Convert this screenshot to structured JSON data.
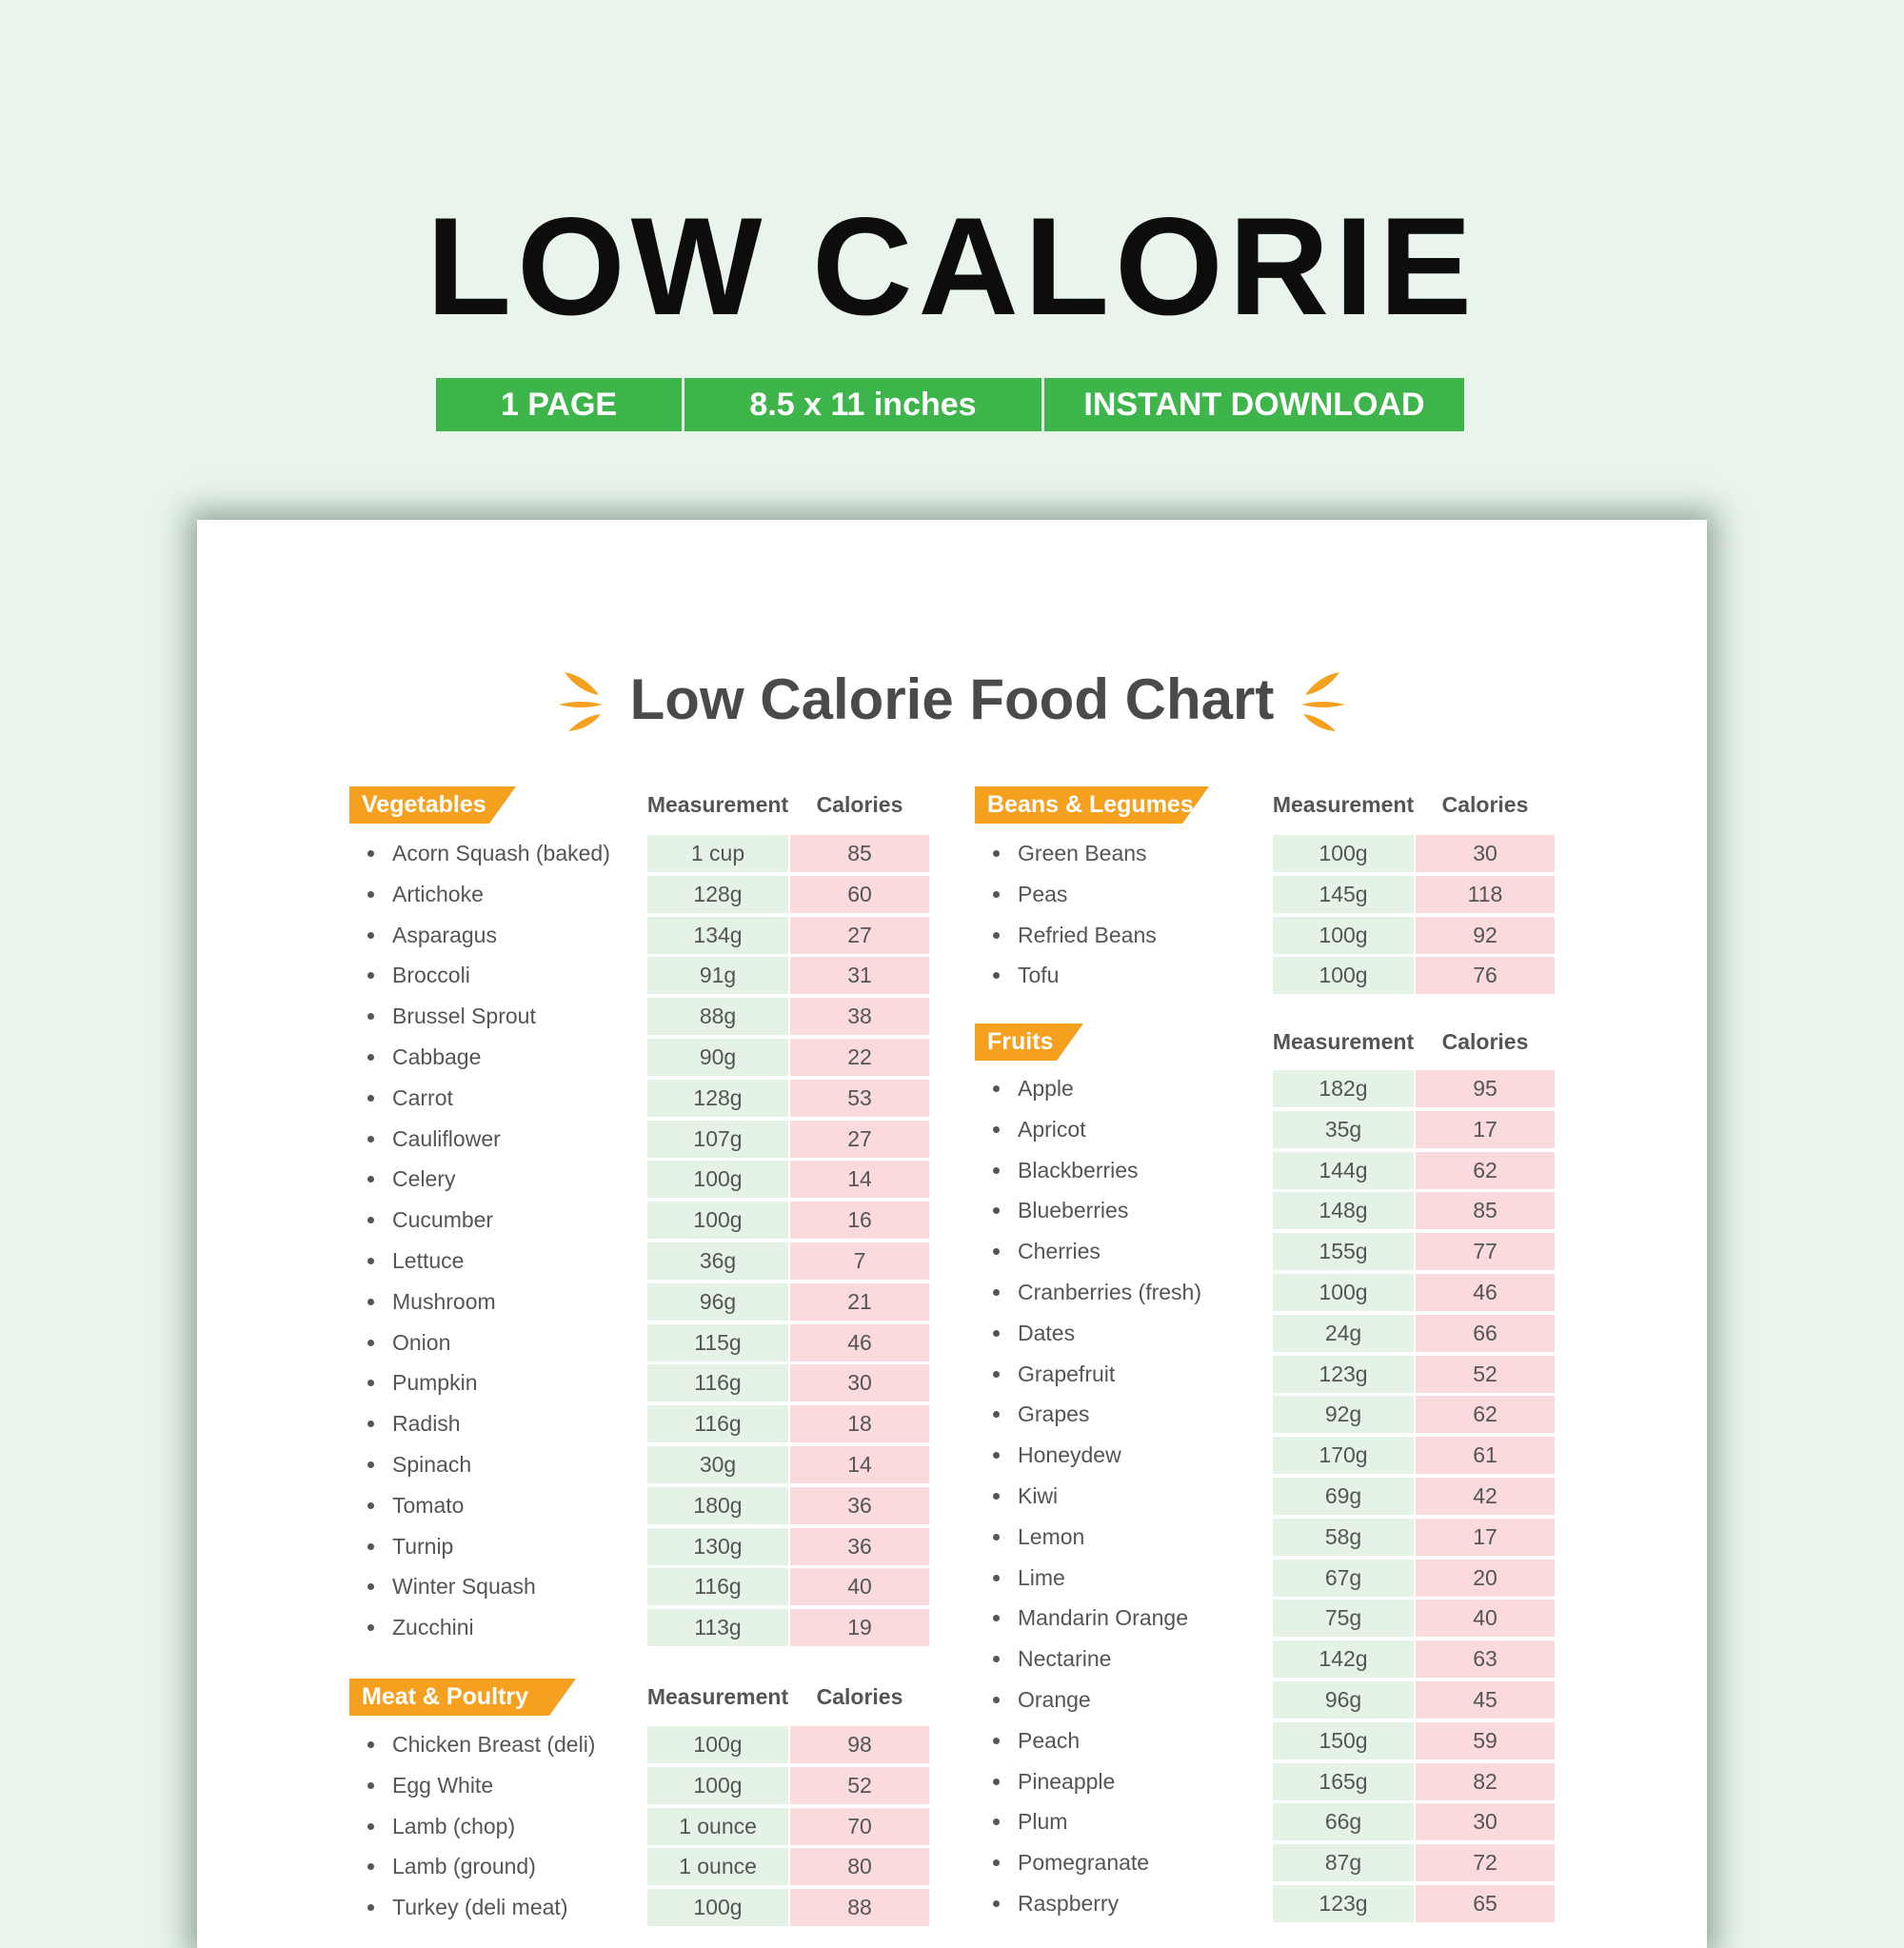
{
  "header": {
    "title": "LOW CALORIE",
    "badges": [
      "1 PAGE",
      "8.5 x 11 inches",
      "INSTANT DOWNLOAD"
    ]
  },
  "document": {
    "title": "Low Calorie Food Chart",
    "sections": [
      {
        "name": "Vegetables",
        "columns": [
          "Measurement",
          "Calories"
        ],
        "rows": [
          [
            "Acorn Squash (baked)",
            "1 cup",
            "85"
          ],
          [
            "Artichoke",
            "128g",
            "60"
          ],
          [
            "Asparagus",
            "134g",
            "27"
          ],
          [
            "Broccoli",
            "91g",
            "31"
          ],
          [
            "Brussel Sprout",
            "88g",
            "38"
          ],
          [
            "Cabbage",
            "90g",
            "22"
          ],
          [
            "Carrot",
            "128g",
            "53"
          ],
          [
            "Cauliflower",
            "107g",
            "27"
          ],
          [
            "Celery",
            "100g",
            "14"
          ],
          [
            "Cucumber",
            "100g",
            "16"
          ],
          [
            "Lettuce",
            "36g",
            "7"
          ],
          [
            "Mushroom",
            "96g",
            "21"
          ],
          [
            "Onion",
            "115g",
            "46"
          ],
          [
            "Pumpkin",
            "116g",
            "30"
          ],
          [
            "Radish",
            "116g",
            "18"
          ],
          [
            "Spinach",
            "30g",
            "14"
          ],
          [
            "Tomato",
            "180g",
            "36"
          ],
          [
            "Turnip",
            "130g",
            "36"
          ],
          [
            "Winter Squash",
            "116g",
            "40"
          ],
          [
            "Zucchini",
            "113g",
            "19"
          ]
        ]
      },
      {
        "name": "Meat & Poultry",
        "columns": [
          "Measurement",
          "Calories"
        ],
        "rows": [
          [
            "Chicken Breast (deli)",
            "100g",
            "98"
          ],
          [
            "Egg White",
            "100g",
            "52"
          ],
          [
            "Lamb (chop)",
            "1 ounce",
            "70"
          ],
          [
            "Lamb (ground)",
            "1 ounce",
            "80"
          ],
          [
            "Turkey (deli meat)",
            "100g",
            "88"
          ]
        ]
      },
      {
        "name": "Beans & Legumes",
        "columns": [
          "Measurement",
          "Calories"
        ],
        "rows": [
          [
            "Green Beans",
            "100g",
            "30"
          ],
          [
            "Peas",
            "145g",
            "118"
          ],
          [
            "Refried Beans",
            "100g",
            "92"
          ],
          [
            "Tofu",
            "100g",
            "76"
          ]
        ]
      },
      {
        "name": "Fruits",
        "columns": [
          "Measurement",
          "Calories"
        ],
        "rows": [
          [
            "Apple",
            "182g",
            "95"
          ],
          [
            "Apricot",
            "35g",
            "17"
          ],
          [
            "Blackberries",
            "144g",
            "62"
          ],
          [
            "Blueberries",
            "148g",
            "85"
          ],
          [
            "Cherries",
            "155g",
            "77"
          ],
          [
            "Cranberries (fresh)",
            "100g",
            "46"
          ],
          [
            "Dates",
            "24g",
            "66"
          ],
          [
            "Grapefruit",
            "123g",
            "52"
          ],
          [
            "Grapes",
            "92g",
            "62"
          ],
          [
            "Honeydew",
            "170g",
            "61"
          ],
          [
            "Kiwi",
            "69g",
            "42"
          ],
          [
            "Lemon",
            "58g",
            "17"
          ],
          [
            "Lime",
            "67g",
            "20"
          ],
          [
            "Mandarin Orange",
            "75g",
            "40"
          ],
          [
            "Nectarine",
            "142g",
            "63"
          ],
          [
            "Orange",
            "96g",
            "45"
          ],
          [
            "Peach",
            "150g",
            "59"
          ],
          [
            "Pineapple",
            "165g",
            "82"
          ],
          [
            "Plum",
            "66g",
            "30"
          ],
          [
            "Pomegranate",
            "87g",
            "72"
          ],
          [
            "Raspberry",
            "123g",
            "65"
          ]
        ]
      }
    ]
  }
}
